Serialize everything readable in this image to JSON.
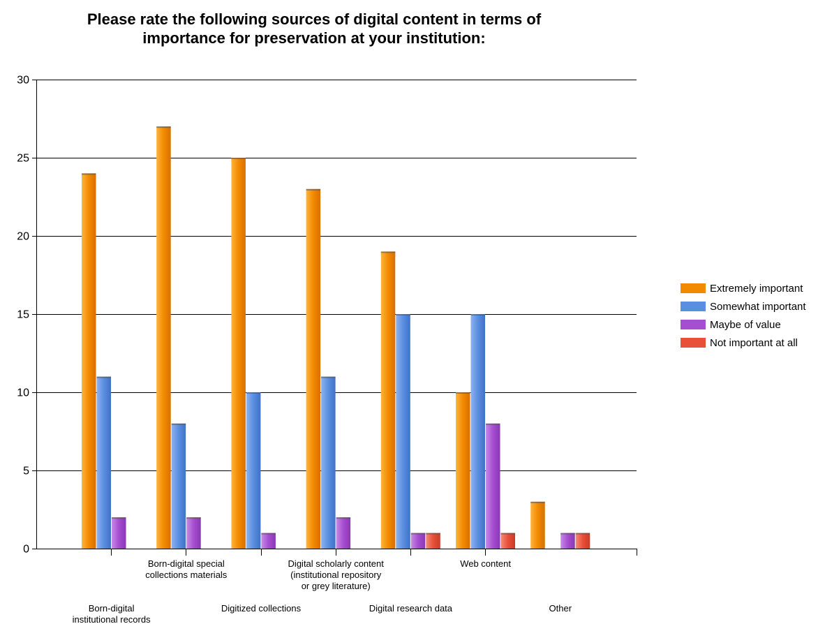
{
  "chart_data": {
    "type": "bar",
    "title": "Please rate the following sources of digital content in terms of\nimportance for preservation at your institution:",
    "categories": [
      "Born-digital institutional records",
      "Born-digital special collections materials",
      "Digitized collections",
      "Digital scholarly content (institutional repository or grey literature)",
      "Digital research data",
      "Web content",
      "Other"
    ],
    "category_label_lines": [
      [
        "Born-digital",
        "institutional records"
      ],
      [
        "Born-digital special",
        "collections materials"
      ],
      [
        "Digitized collections"
      ],
      [
        "Digital scholarly content",
        "(institutional repository",
        "or grey literature)"
      ],
      [
        "Digital research data"
      ],
      [
        "Web content"
      ],
      [
        "Other"
      ]
    ],
    "series": [
      {
        "name": "Extremely important",
        "color": "#F28A00",
        "values": [
          24,
          27,
          25,
          23,
          19,
          10,
          3
        ]
      },
      {
        "name": "Somewhat important",
        "color": "#5A8EE0",
        "values": [
          11,
          8,
          10,
          11,
          15,
          15,
          0
        ]
      },
      {
        "name": "Maybe of value",
        "color": "#A64ED0",
        "values": [
          2,
          2,
          1,
          2,
          1,
          8,
          1
        ]
      },
      {
        "name": "Not important at all",
        "color": "#E8503A",
        "values": [
          0,
          0,
          0,
          0,
          1,
          1,
          1
        ]
      }
    ],
    "ylim": [
      0,
      30
    ],
    "yticks": [
      0,
      5,
      10,
      15,
      20,
      25,
      30
    ],
    "xlabel": "",
    "ylabel": "",
    "grid": true,
    "legend_position": "right"
  }
}
